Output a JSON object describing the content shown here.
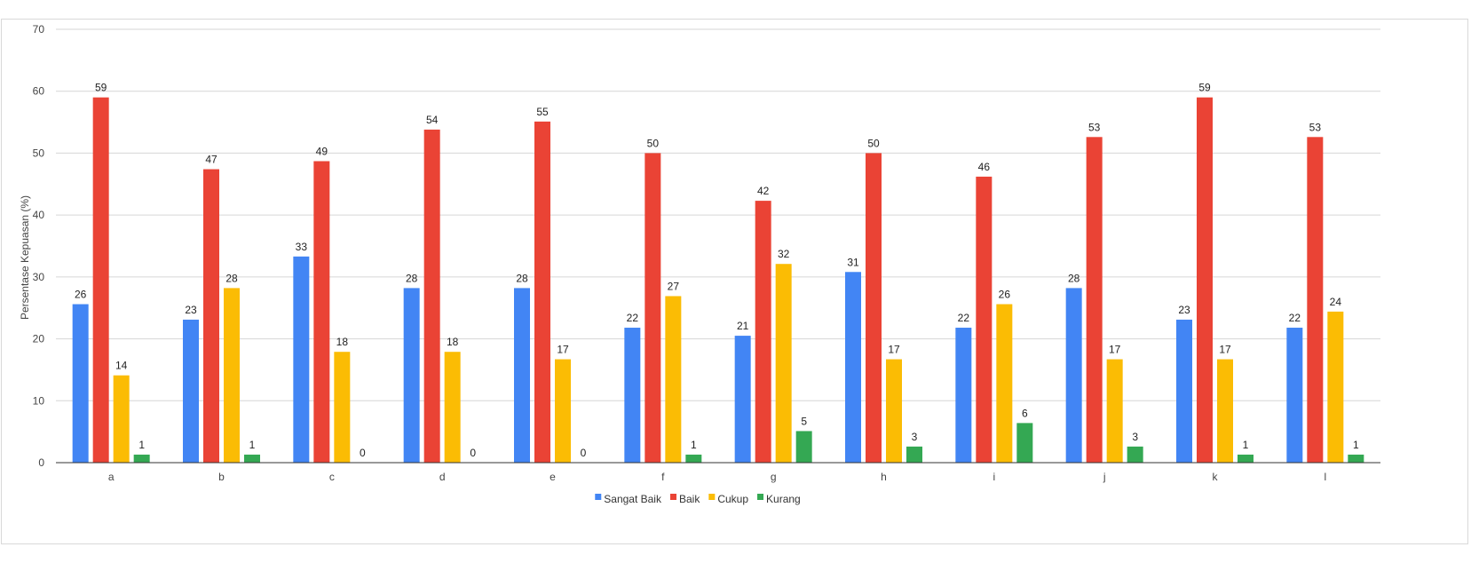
{
  "chart_data": {
    "type": "bar",
    "title": "",
    "xlabel": "",
    "ylabel": "Persentase Kepuasan (%)",
    "ylim": [
      0,
      70
    ],
    "yticks": [
      0,
      10,
      20,
      30,
      40,
      50,
      60,
      70
    ],
    "grid": true,
    "legend_position": "bottom",
    "categories": [
      "a",
      "b",
      "c",
      "d",
      "e",
      "f",
      "g",
      "h",
      "i",
      "j",
      "k",
      "l"
    ],
    "series": [
      {
        "name": "Sangat Baik",
        "color": "#4285f4",
        "values": [
          25.6,
          23.1,
          33.3,
          28.2,
          28.2,
          21.8,
          20.5,
          30.8,
          21.8,
          28.2,
          23.1,
          21.8
        ],
        "labels": [
          "26",
          "23",
          "33",
          "28",
          "28",
          "22",
          "21",
          "31",
          "22",
          "28",
          "23",
          "22"
        ]
      },
      {
        "name": "Baik",
        "color": "#ea4335",
        "values": [
          59.0,
          47.4,
          48.7,
          53.8,
          55.1,
          50.0,
          42.3,
          50.0,
          46.2,
          52.6,
          59.0,
          52.6
        ],
        "labels": [
          "59",
          "47",
          "49",
          "54",
          "55",
          "50",
          "42",
          "50",
          "46",
          "53",
          "59",
          "53"
        ]
      },
      {
        "name": "Cukup",
        "color": "#fbbc04",
        "values": [
          14.1,
          28.2,
          17.9,
          17.9,
          16.7,
          26.9,
          32.1,
          16.7,
          25.6,
          16.7,
          16.7,
          24.4
        ],
        "labels": [
          "14",
          "28",
          "18",
          "18",
          "17",
          "27",
          "32",
          "17",
          "26",
          "17",
          "17",
          "24"
        ]
      },
      {
        "name": "Kurang",
        "color": "#34a853",
        "values": [
          1.3,
          1.3,
          0,
          0,
          0,
          1.3,
          5.1,
          2.6,
          6.4,
          2.6,
          1.3,
          1.3
        ],
        "labels": [
          "1",
          "1",
          "0",
          "0",
          "0",
          "1",
          "5",
          "3",
          "6",
          "3",
          "1",
          "1"
        ]
      }
    ]
  }
}
